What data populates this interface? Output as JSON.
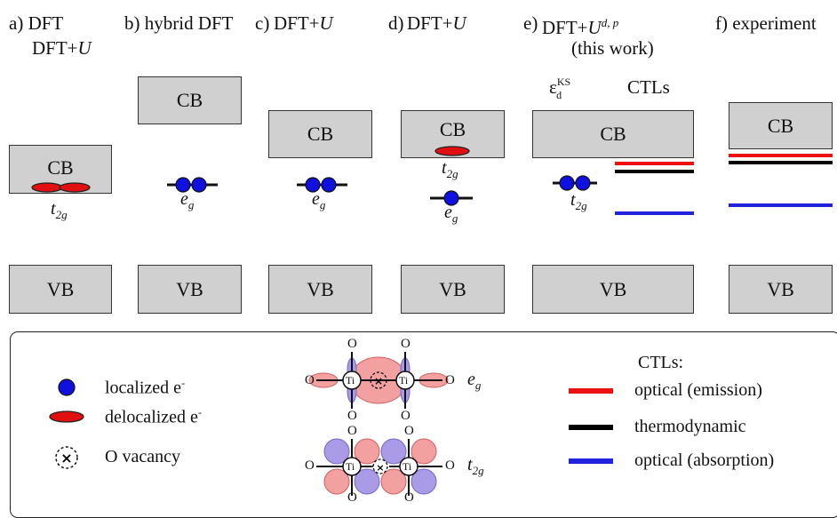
{
  "panels": [
    {
      "header": "a) DFT",
      "header2": "DFT+U",
      "band_cb": "CB",
      "band_vb": "VB",
      "state": "t2g"
    },
    {
      "header": "b) hybrid DFT",
      "band_cb": "CB",
      "band_vb": "VB",
      "state": "eg"
    },
    {
      "header": "c) DFT+U",
      "band_cb": "CB",
      "band_vb": "VB",
      "state": "eg"
    },
    {
      "header": "d) DFT+U",
      "band_cb": "CB",
      "band_vb": "VB",
      "state_upper": "t2g",
      "state_lower": "eg"
    },
    {
      "header": "e) DFT+U",
      "header_sup": "d, p",
      "header2": "(this work)",
      "col_ks": "ε",
      "col_ks_sup": "KS",
      "col_ks_sub": "d",
      "col_ctl": "CTLs",
      "band_cb": "CB",
      "band_vb": "VB",
      "state": "t2g"
    },
    {
      "header": "f) experiment",
      "band_cb": "CB",
      "band_vb": "VB"
    }
  ],
  "legend": {
    "localized": "localized e",
    "delocalized": "delocalized e",
    "vacancy": "O vacancy",
    "orbital_eg": "eg",
    "orbital_t2g": "t2g",
    "atom_ti": "Ti",
    "atom_o": "O",
    "ctls_title": "CTLs:",
    "ctl_emission": "optical (emission)",
    "ctl_thermo": "thermodynamic",
    "ctl_absorption": "optical (absorption)"
  },
  "colors": {
    "band_fill": "#d0d0d0",
    "localized": "#1010e0",
    "delocalized": "#e01010",
    "emission": "#ee1111",
    "thermodynamic": "#000000",
    "absorption": "#2222dd",
    "lobe_red": "#f2a0a0",
    "lobe_blue": "#a99be6"
  }
}
